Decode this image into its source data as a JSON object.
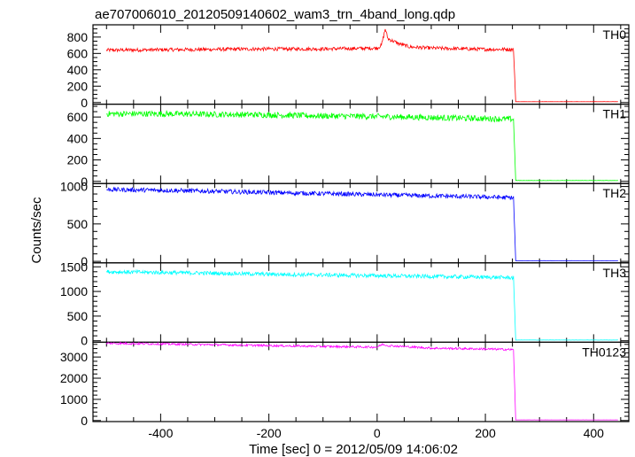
{
  "chart_data": {
    "type": "line",
    "title": "ae707006010_20120509140602_wam3_trn_4band_long.qdp",
    "xlabel": "Time [sec] 0 = 2012/05/09 14:06:02",
    "ylabel": "Counts/sec",
    "xlim": [
      -525,
      465
    ],
    "xticks": [
      -400,
      -200,
      0,
      200,
      400
    ],
    "x_minor_step": 50,
    "grid": false,
    "data_x_range": [
      -500,
      445
    ],
    "drop_time": 253,
    "panels": [
      {
        "name": "TH0",
        "color": "#ff0000",
        "ylim": [
          -20,
          950
        ],
        "yticks": [
          0,
          200,
          400,
          600,
          800
        ],
        "y_minor_step": 50,
        "noise": 22,
        "points": [
          [
            -500,
            640
          ],
          [
            -400,
            645
          ],
          [
            -300,
            650
          ],
          [
            -200,
            655
          ],
          [
            -100,
            655
          ],
          [
            0,
            665
          ],
          [
            8,
            700
          ],
          [
            15,
            900
          ],
          [
            20,
            780
          ],
          [
            40,
            720
          ],
          [
            60,
            680
          ],
          [
            100,
            665
          ],
          [
            200,
            650
          ],
          [
            252,
            650
          ],
          [
            256,
            10
          ],
          [
            445,
            10
          ]
        ]
      },
      {
        "name": "TH1",
        "color": "#00ff00",
        "ylim": [
          -20,
          720
        ],
        "yticks": [
          0,
          200,
          400,
          600
        ],
        "y_minor_step": 50,
        "noise": 28,
        "points": [
          [
            -500,
            630
          ],
          [
            -400,
            630
          ],
          [
            -300,
            625
          ],
          [
            -200,
            620
          ],
          [
            -100,
            610
          ],
          [
            0,
            605
          ],
          [
            100,
            595
          ],
          [
            200,
            585
          ],
          [
            252,
            580
          ],
          [
            256,
            8
          ],
          [
            445,
            8
          ]
        ]
      },
      {
        "name": "TH2",
        "color": "#0000ff",
        "ylim": [
          -20,
          1040
        ],
        "yticks": [
          0,
          500,
          1000
        ],
        "y_minor_step": 100,
        "noise": 30,
        "points": [
          [
            -500,
            960
          ],
          [
            -400,
            950
          ],
          [
            -300,
            935
          ],
          [
            -200,
            920
          ],
          [
            -100,
            905
          ],
          [
            0,
            890
          ],
          [
            100,
            875
          ],
          [
            200,
            860
          ],
          [
            252,
            850
          ],
          [
            256,
            8
          ],
          [
            445,
            8
          ]
        ]
      },
      {
        "name": "TH3",
        "color": "#00ffff",
        "ylim": [
          -30,
          1580
        ],
        "yticks": [
          0,
          500,
          1000,
          1500
        ],
        "y_minor_step": 100,
        "noise": 40,
        "points": [
          [
            -500,
            1400
          ],
          [
            -400,
            1385
          ],
          [
            -300,
            1370
          ],
          [
            -200,
            1350
          ],
          [
            -100,
            1335
          ],
          [
            0,
            1320
          ],
          [
            100,
            1305
          ],
          [
            200,
            1290
          ],
          [
            252,
            1280
          ],
          [
            256,
            15
          ],
          [
            445,
            15
          ]
        ]
      },
      {
        "name": "TH0123",
        "color": "#ff00ff",
        "ylim": [
          -50,
          3700
        ],
        "yticks": [
          0,
          1000,
          2000,
          3000
        ],
        "y_minor_step": 200,
        "noise": 50,
        "points": [
          [
            -500,
            3650
          ],
          [
            -400,
            3620
          ],
          [
            -300,
            3580
          ],
          [
            -200,
            3540
          ],
          [
            -100,
            3500
          ],
          [
            0,
            3470
          ],
          [
            10,
            3600
          ],
          [
            20,
            3540
          ],
          [
            100,
            3420
          ],
          [
            200,
            3380
          ],
          [
            252,
            3350
          ],
          [
            256,
            30
          ],
          [
            445,
            30
          ]
        ]
      }
    ]
  }
}
